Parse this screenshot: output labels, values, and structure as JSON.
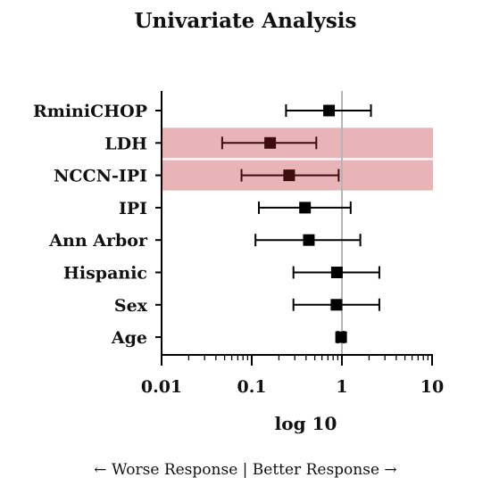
{
  "chart_data": {
    "type": "forest",
    "title": "Univariate Analysis",
    "xlabel": "log 10",
    "xscale": "log",
    "xlim": [
      0.01,
      10
    ],
    "x_ticks": [
      "0.01",
      "0.1",
      "1",
      "10"
    ],
    "reference_line": 1,
    "highlighted_categories": [
      "LDH",
      "NCCN-IPI"
    ],
    "highlight_color": "#e8b4b8",
    "marker_color_default": "#000000",
    "marker_color_highlight": "#3b0d0d",
    "categories": [
      "RminiCHOP",
      "LDH",
      "NCCN-IPI",
      "IPI",
      "Ann Arbor",
      "Hispanic",
      "Sex",
      "Age"
    ],
    "estimates": [
      0.72,
      0.16,
      0.26,
      0.39,
      0.43,
      0.88,
      0.87,
      0.98
    ],
    "ci_lower": [
      0.24,
      0.047,
      0.077,
      0.12,
      0.11,
      0.29,
      0.29,
      0.9
    ],
    "ci_upper": [
      2.1,
      0.52,
      0.92,
      1.25,
      1.6,
      2.6,
      2.6,
      1.05
    ]
  },
  "caption": "← Worse Response | Better Response →"
}
